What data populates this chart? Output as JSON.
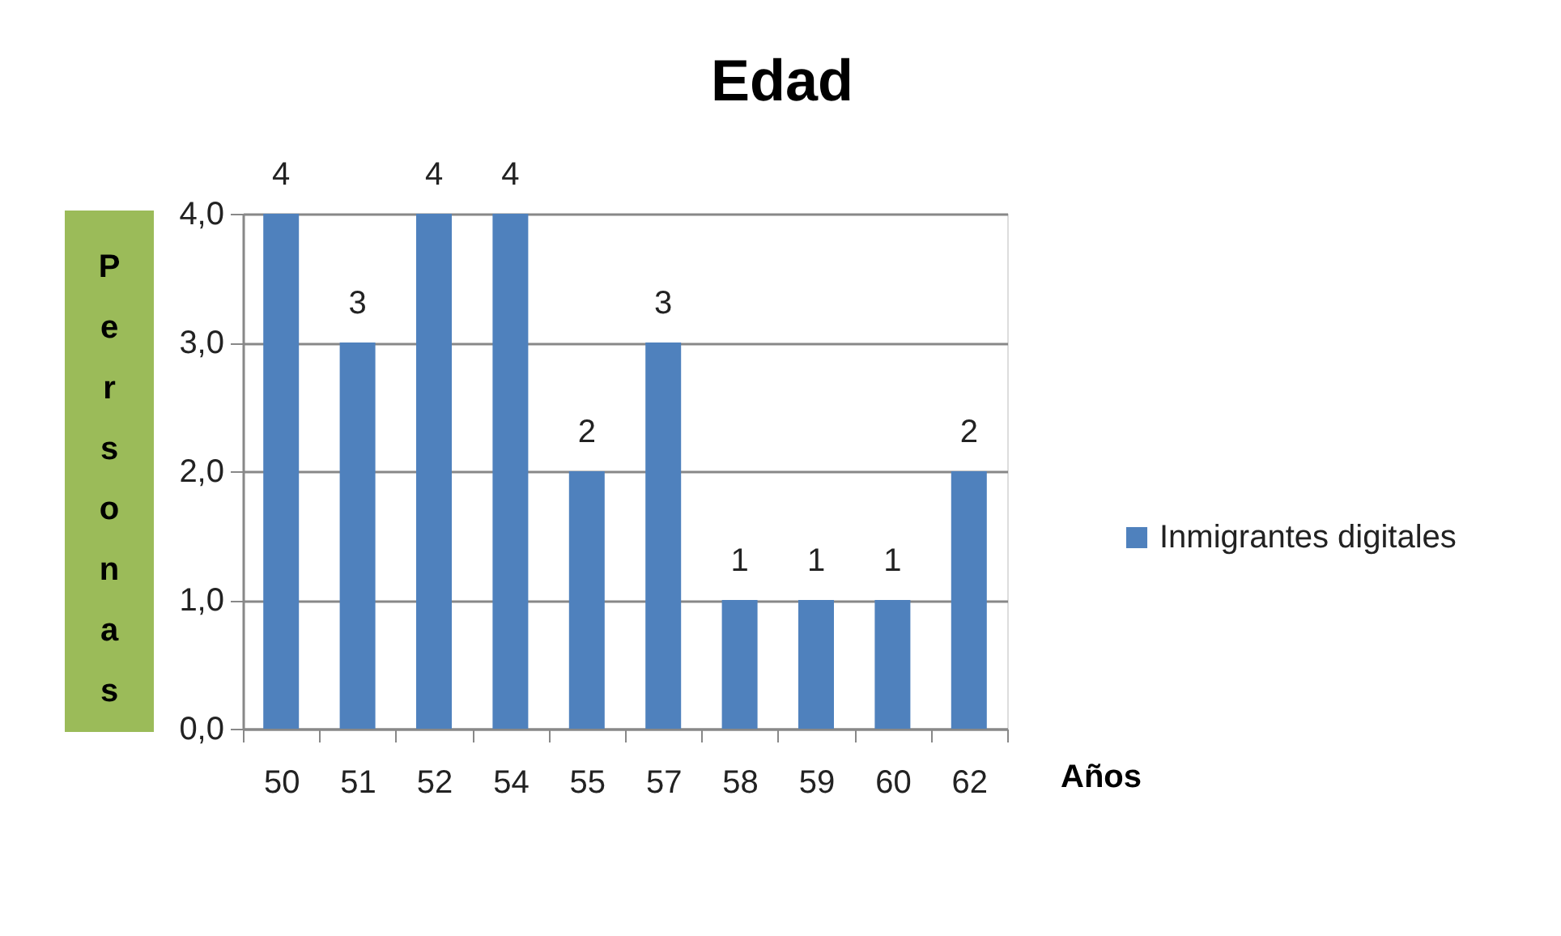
{
  "chart_data": {
    "type": "bar",
    "title": "Edad",
    "xlabel": "Años",
    "ylabel": "Personas",
    "categories": [
      "50",
      "51",
      "52",
      "54",
      "55",
      "57",
      "58",
      "59",
      "60",
      "62"
    ],
    "series": [
      {
        "name": "Inmigrantes digitales",
        "color": "#4f81bd",
        "values": [
          4,
          3,
          4,
          4,
          2,
          3,
          1,
          1,
          1,
          2
        ]
      }
    ],
    "ylim": [
      0,
      4
    ],
    "yticks": [
      {
        "value": 0,
        "label": "0,0"
      },
      {
        "value": 1,
        "label": "1,0"
      },
      {
        "value": 2,
        "label": "2,0"
      },
      {
        "value": 3,
        "label": "3,0"
      },
      {
        "value": 4,
        "label": "4,0"
      }
    ],
    "grid": "y",
    "legend": "right",
    "data_labels": true
  }
}
